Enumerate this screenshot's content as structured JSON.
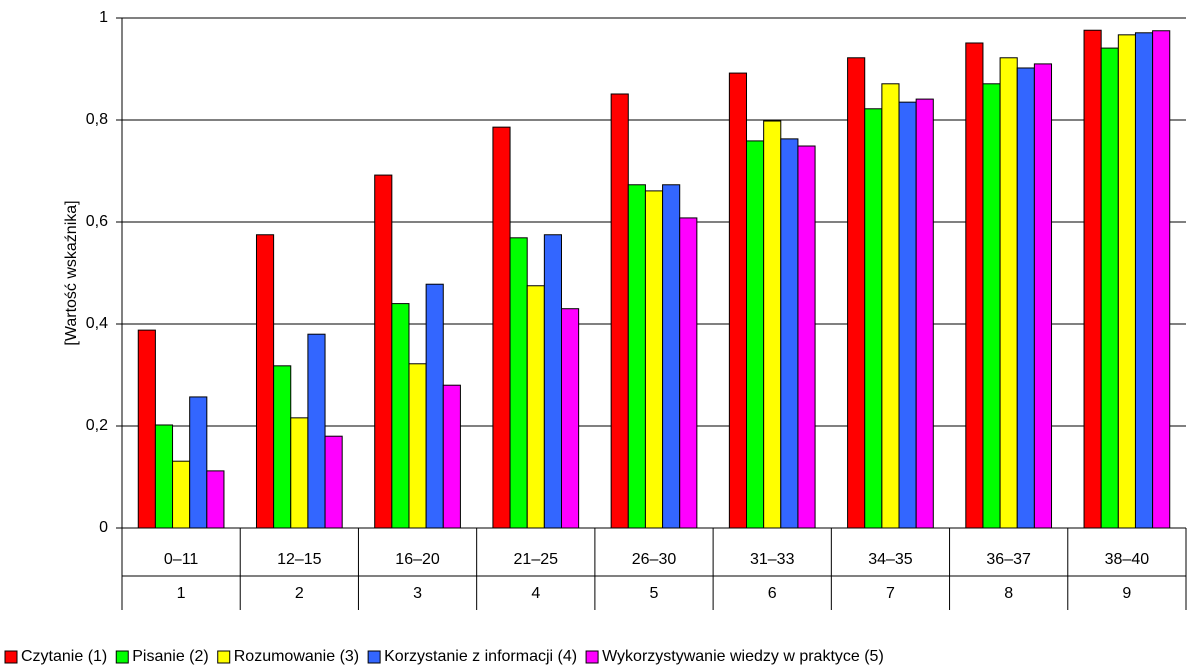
{
  "chart_data": {
    "type": "bar",
    "y_label": "[Wartość wskaźnika]",
    "categories": [
      "0–11",
      "12–15",
      "16–20",
      "21–25",
      "26–30",
      "31–33",
      "34–35",
      "36–37",
      "38–40"
    ],
    "subcategories": [
      "1",
      "2",
      "3",
      "4",
      "5",
      "6",
      "7",
      "8",
      "9"
    ],
    "series": [
      {
        "name": "Czytanie (1)",
        "color": "#ff0000",
        "values": [
          0.388,
          0.575,
          0.692,
          0.786,
          0.851,
          0.892,
          0.922,
          0.951,
          0.976
        ]
      },
      {
        "name": "Pisanie (2)",
        "color": "#00ff00",
        "values": [
          0.202,
          0.318,
          0.44,
          0.569,
          0.673,
          0.759,
          0.822,
          0.871,
          0.941
        ]
      },
      {
        "name": "Rozumowanie (3)",
        "color": "#ffff00",
        "values": [
          0.131,
          0.216,
          0.322,
          0.475,
          0.661,
          0.798,
          0.871,
          0.922,
          0.967
        ]
      },
      {
        "name": "Korzystanie z informacji (4)",
        "color": "#3366ff",
        "values": [
          0.257,
          0.38,
          0.478,
          0.575,
          0.673,
          0.763,
          0.835,
          0.902,
          0.971
        ]
      },
      {
        "name": "Wykorzystywanie wiedzy w praktyce (5)",
        "color": "#ff00ff",
        "values": [
          0.112,
          0.18,
          0.28,
          0.43,
          0.608,
          0.749,
          0.841,
          0.91,
          0.975
        ]
      }
    ],
    "ylim": [
      0,
      1
    ],
    "yticks": [
      0,
      {
        "value": 0.2,
        "label": "0,2"
      },
      {
        "value": 0.4,
        "label": "0,4"
      },
      {
        "value": 0.6,
        "label": "0,6"
      },
      {
        "value": 0.8,
        "label": "0,8"
      },
      1
    ],
    "grid": true,
    "legend": "bottom"
  }
}
